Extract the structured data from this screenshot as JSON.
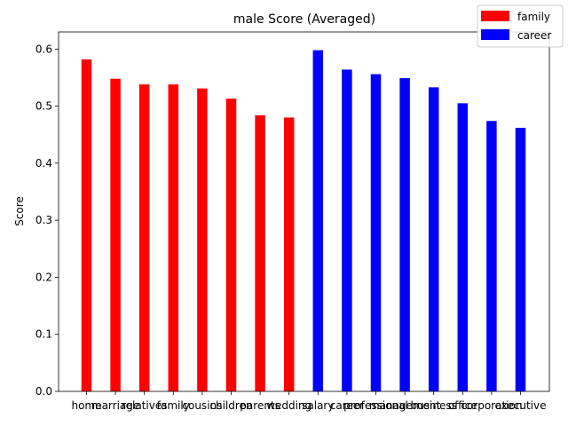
{
  "chart_data": {
    "type": "bar",
    "title": "male Score (Averaged)",
    "ylabel": "Score",
    "xlabel": "",
    "ylim": [
      0,
      0.63
    ],
    "yticks": [
      "0.0",
      "0.1",
      "0.2",
      "0.3",
      "0.4",
      "0.5",
      "0.6"
    ],
    "grid": false,
    "legend_position": "top-right",
    "categories": [
      "home",
      "marriage",
      "relatives",
      "family",
      "cousins",
      "children",
      "parents",
      "wedding",
      "salary",
      "career",
      "professional",
      "management",
      "business",
      "office",
      "corporation",
      "executive"
    ],
    "series": [
      {
        "name": "family",
        "color": "#ff0000",
        "values": [
          0.582,
          0.548,
          0.538,
          0.538,
          0.531,
          0.513,
          0.484,
          0.48,
          null,
          null,
          null,
          null,
          null,
          null,
          null,
          null
        ]
      },
      {
        "name": "career",
        "color": "#0000ff",
        "values": [
          null,
          null,
          null,
          null,
          null,
          null,
          null,
          null,
          0.598,
          0.564,
          0.556,
          0.549,
          0.533,
          0.505,
          0.474,
          0.462
        ]
      }
    ]
  }
}
